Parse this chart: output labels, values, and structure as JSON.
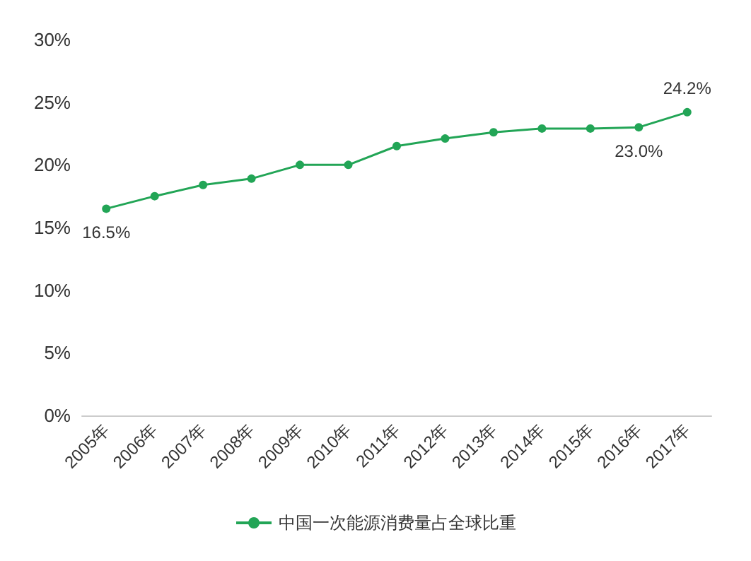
{
  "chart_data": {
    "type": "line",
    "categories": [
      "2005年",
      "2006年",
      "2007年",
      "2008年",
      "2009年",
      "2010年",
      "2011年",
      "2012年",
      "2013年",
      "2014年",
      "2015年",
      "2016年",
      "2017年"
    ],
    "series": [
      {
        "name": "中国一次能源消费量占全球比重",
        "color": "#22a556",
        "values": [
          16.5,
          17.5,
          18.4,
          18.9,
          20.0,
          20.0,
          21.5,
          22.1,
          22.6,
          22.9,
          22.9,
          23.0,
          24.2
        ],
        "value_labels": [
          "16.5%",
          null,
          null,
          null,
          null,
          null,
          null,
          null,
          null,
          null,
          null,
          "23.0%",
          "24.2%"
        ]
      }
    ],
    "ylim": [
      0,
      30
    ],
    "yticks": [
      {
        "value": 0,
        "label": "0%"
      },
      {
        "value": 5,
        "label": "5%"
      },
      {
        "value": 10,
        "label": "10%"
      },
      {
        "value": 15,
        "label": "15%"
      },
      {
        "value": 20,
        "label": "20%"
      },
      {
        "value": 25,
        "label": "25%"
      },
      {
        "value": 30,
        "label": "30%"
      }
    ],
    "legend": "bottom",
    "marker": "circle",
    "line_style": "solid"
  }
}
